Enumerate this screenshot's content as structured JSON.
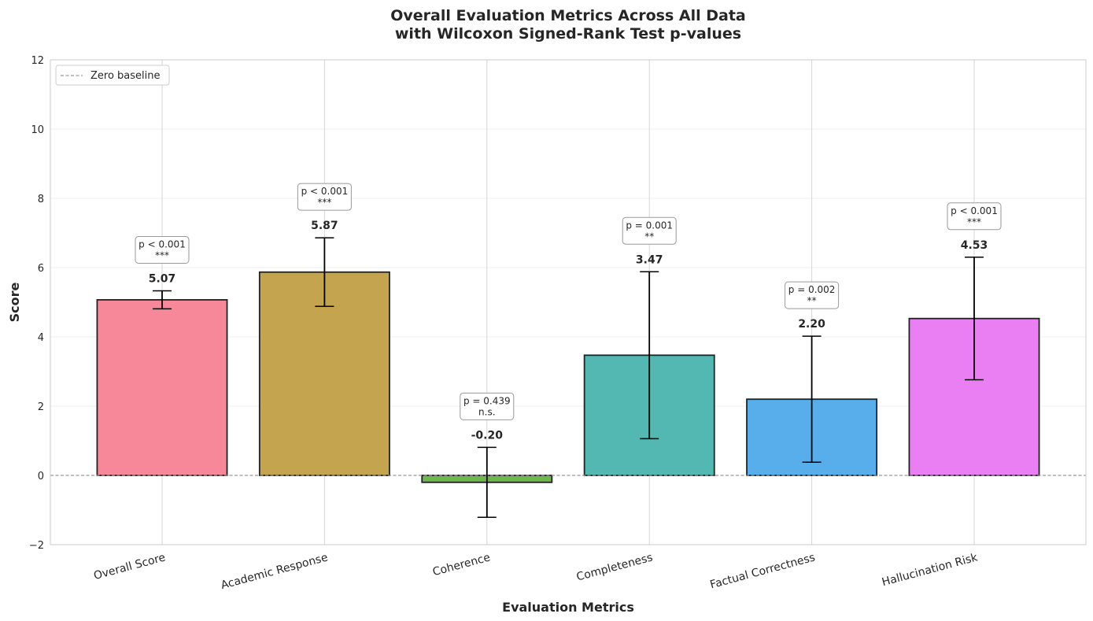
{
  "chart_data": {
    "type": "bar",
    "title": "Overall Evaluation Metrics Across All Data\nwith Wilcoxon Signed-Rank Test p-values",
    "xlabel": "Evaluation Metrics",
    "ylabel": "Score",
    "ylim": [
      -2,
      12
    ],
    "yticks": [
      -2,
      0,
      2,
      4,
      6,
      8,
      10,
      12
    ],
    "grid": true,
    "legend": {
      "placement": "top-left",
      "entries": [
        "Zero baseline"
      ]
    },
    "baseline": 0,
    "categories": [
      "Overall Score",
      "Academic Response",
      "Coherence",
      "Completeness",
      "Factual Correctness",
      "Hallucination Risk"
    ],
    "values": [
      5.07,
      5.87,
      -0.2,
      3.47,
      2.2,
      4.53
    ],
    "value_labels": [
      "5.07",
      "5.87",
      "-0.20",
      "3.47",
      "2.20",
      "4.53"
    ],
    "errors": [
      0.26,
      0.99,
      1.01,
      2.41,
      1.82,
      1.77
    ],
    "p_values": [
      "p < 0.001",
      "p < 0.001",
      "p = 0.439",
      "p = 0.001",
      "p = 0.002",
      "p < 0.001"
    ],
    "significance": [
      "***",
      "***",
      "n.s.",
      "**",
      "**",
      "***"
    ],
    "colors": [
      "#f7889a",
      "#c4a44e",
      "#6cb84c",
      "#52b8b1",
      "#57aeea",
      "#e97ff2"
    ]
  }
}
